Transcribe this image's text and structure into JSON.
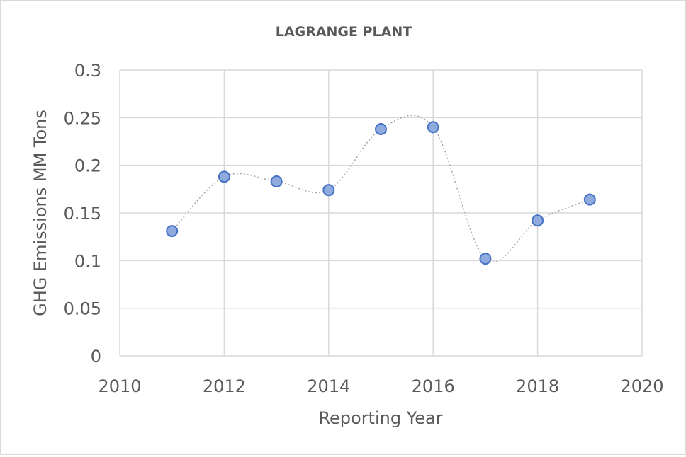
{
  "chart_data": {
    "type": "scatter",
    "title": "LAGRANGE PLANT",
    "xlabel": "Reporting Year",
    "ylabel": "GHG Emissions MM Tons",
    "xlim": [
      2010,
      2020
    ],
    "ylim": [
      0,
      0.3
    ],
    "x_ticks": [
      "2010",
      "2012",
      "2014",
      "2016",
      "2018",
      "2020"
    ],
    "y_ticks": [
      "0",
      "0.05",
      "0.1",
      "0.15",
      "0.2",
      "0.25",
      "0.3"
    ],
    "grid": true,
    "line_style": "smooth dotted",
    "marker_fill": "#8faadc",
    "marker_stroke": "#4472c4",
    "line_color": "#a6a6a6",
    "x": [
      2011,
      2012,
      2013,
      2014,
      2015,
      2016,
      2017,
      2018,
      2019
    ],
    "y": [
      0.131,
      0.188,
      0.183,
      0.174,
      0.238,
      0.24,
      0.102,
      0.142,
      0.164
    ]
  }
}
